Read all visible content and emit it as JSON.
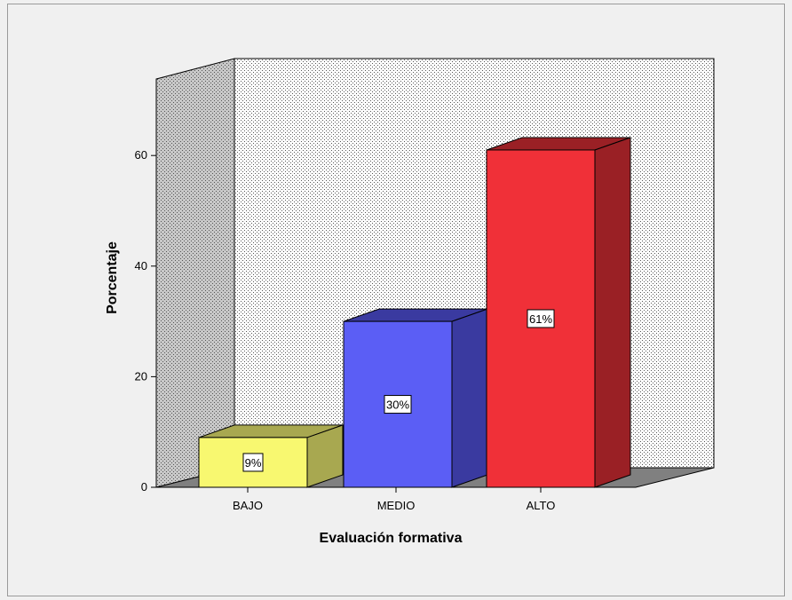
{
  "chart_data": {
    "type": "bar",
    "style": "3d",
    "title": "",
    "xlabel": "Evaluación formativa",
    "ylabel": "Porcentaje",
    "categories": [
      "BAJO",
      "MEDIO",
      "ALTO"
    ],
    "values": [
      9,
      30,
      61
    ],
    "data_labels": [
      "9%",
      "30%",
      "61%"
    ],
    "ylim": [
      0,
      60
    ],
    "yticks": [
      0,
      20,
      40,
      60
    ],
    "ytick_labels": [
      "0",
      "20",
      "40",
      "60"
    ],
    "grid": false,
    "legend": "none",
    "colors": {
      "bars": [
        {
          "front": "#f8f870",
          "side": "#a8a850",
          "top": "#a8a850"
        },
        {
          "front": "#5b5ef5",
          "side": "#3a3aa0",
          "top": "#3a3aa0"
        },
        {
          "front": "#f03038",
          "side": "#9a2025",
          "top": "#9a2025"
        }
      ],
      "back_wall": "#ffffff",
      "side_wall": "#c8c8c8",
      "floor": "#808080",
      "stipple": "#555555"
    }
  }
}
